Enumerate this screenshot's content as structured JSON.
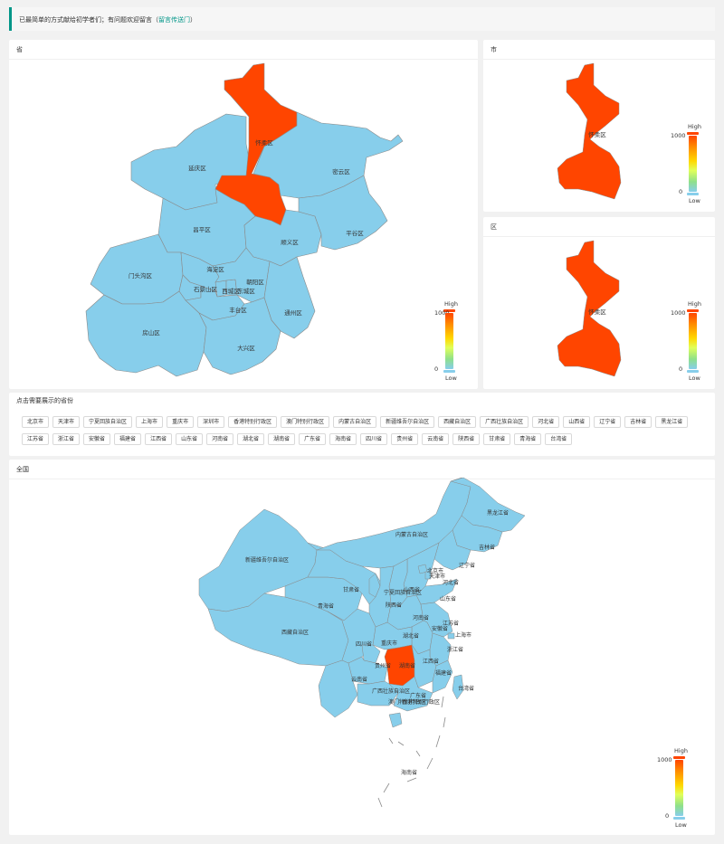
{
  "notice": {
    "text": "已最简单的方式献给初学者们；有问题欢迎留言（",
    "link": "留言传送门",
    "suffix": "）"
  },
  "panels": {
    "province": {
      "title": "省"
    },
    "city": {
      "title": "市"
    },
    "district": {
      "title": "区"
    },
    "picker": {
      "title": "点击需要展示的省份"
    },
    "nation": {
      "title": "全国"
    }
  },
  "visual_map": {
    "high": "High",
    "low": "Low",
    "max": "1000",
    "min": "0"
  },
  "colors": {
    "region": "#87ceeb",
    "selected": "#ff4500",
    "border": "#8a8a8a",
    "accent": "#009688"
  },
  "beijing_labels": [
    {
      "name": "延庆区"
    },
    {
      "name": "怀柔区"
    },
    {
      "name": "密云区"
    },
    {
      "name": "昌平区"
    },
    {
      "name": "顺义区"
    },
    {
      "name": "平谷区"
    },
    {
      "name": "门头沟区"
    },
    {
      "name": "海淀区"
    },
    {
      "name": "石景山区"
    },
    {
      "name": "西城区"
    },
    {
      "name": "东城区"
    },
    {
      "name": "朝阳区"
    },
    {
      "name": "丰台区"
    },
    {
      "name": "通州区"
    },
    {
      "name": "房山区"
    },
    {
      "name": "大兴区"
    }
  ],
  "city_label": "怀柔区",
  "district_label": "怀柔区",
  "provinces": [
    "北京市",
    "天津市",
    "宁夏回族自治区",
    "上海市",
    "重庆市",
    "深圳市",
    "香港特别行政区",
    "澳门特别行政区",
    "内蒙古自治区",
    "新疆维吾尔自治区",
    "西藏自治区",
    "广西壮族自治区",
    "河北省",
    "山西省",
    "辽宁省",
    "吉林省",
    "黑龙江省",
    "江苏省",
    "浙江省",
    "安徽省",
    "福建省",
    "江西省",
    "山东省",
    "河南省",
    "湖北省",
    "湖南省",
    "广东省",
    "海南省",
    "四川省",
    "贵州省",
    "云南省",
    "陕西省",
    "甘肃省",
    "青海省",
    "台湾省"
  ],
  "china_labels": [
    "黑龙江省",
    "内蒙古自治区",
    "吉林省",
    "辽宁省",
    "新疆维吾尔自治区",
    "北京市",
    "天津市",
    "河北省",
    "甘肃省",
    "宁夏回族自治区",
    "山西省",
    "山东省",
    "青海省",
    "陕西省",
    "河南省",
    "江苏省",
    "安徽省",
    "上海市",
    "西藏自治区",
    "四川省",
    "重庆市",
    "湖北省",
    "浙江省",
    "湖南省",
    "贵州省",
    "江西省",
    "福建省",
    "云南省",
    "台湾省",
    "广西壮族自治区",
    "广东省",
    "澳门特别行政区",
    "香港特别行政区",
    "海南省"
  ]
}
